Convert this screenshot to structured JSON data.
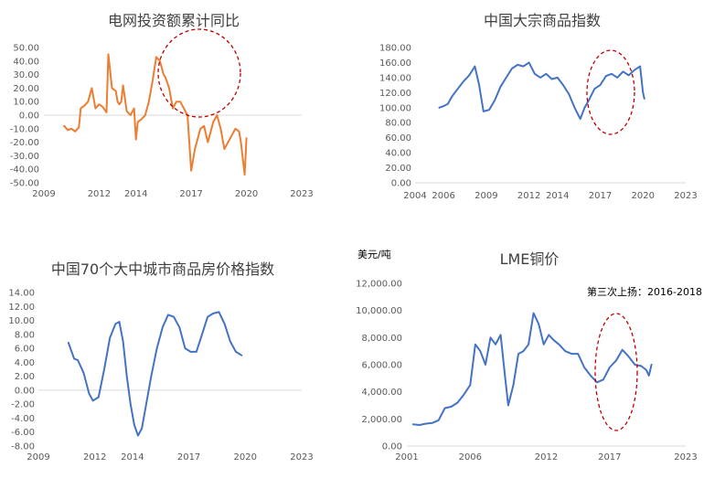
{
  "chart_data": [
    {
      "type": "line",
      "title": "电网投资额累计同比",
      "color": "#ED7D31",
      "xlim": [
        2009,
        2023
      ],
      "ylim": [
        -50,
        50
      ],
      "x_ticks": [
        "2009",
        "2012",
        "2014",
        "2017",
        "2020",
        "2023"
      ],
      "y_ticks": [
        "50.00",
        "40.00",
        "30.00",
        "20.00",
        "10.00",
        "0.00",
        "-10.00",
        "-20.00",
        "-30.00",
        "-40.00",
        "-50.00"
      ],
      "series": [
        {
          "x": [
            2010.1,
            2010.3,
            2010.5,
            2010.7,
            2010.9,
            2011.0,
            2011.2,
            2011.4,
            2011.6,
            2011.8,
            2012.0,
            2012.2,
            2012.4,
            2012.5,
            2012.7,
            2012.9,
            2013.0,
            2013.1,
            2013.2,
            2013.3,
            2013.5,
            2013.7,
            2013.9,
            2014.0,
            2014.1,
            2014.3,
            2014.5,
            2014.7,
            2014.9,
            2015.1,
            2015.3,
            2015.5,
            2015.6,
            2015.8,
            2016.0,
            2016.2,
            2016.4,
            2016.6,
            2016.8,
            2017.0,
            2017.2,
            2017.3,
            2017.5,
            2017.7,
            2017.9,
            2018.0,
            2018.2,
            2018.4,
            2018.6,
            2018.8,
            2019.0,
            2019.2,
            2019.4,
            2019.6,
            2019.7,
            2019.9,
            2020.0
          ],
          "y": [
            -8,
            -11,
            -10,
            -12,
            -9,
            5,
            7,
            10,
            20,
            5,
            8,
            6,
            2,
            45,
            20,
            18,
            10,
            8,
            10,
            22,
            3,
            0,
            5,
            -18,
            -5,
            -3,
            0,
            10,
            25,
            43,
            40,
            30,
            28,
            20,
            5,
            10,
            10,
            5,
            0,
            -41,
            -25,
            -20,
            -10,
            -8,
            -20,
            -15,
            -5,
            0,
            -10,
            -25,
            -20,
            -15,
            -10,
            -12,
            -20,
            -44,
            -17
          ]
        }
      ],
      "annotation_circle": true
    },
    {
      "type": "line",
      "title": "中国大宗商品指数",
      "color": "#4472C4",
      "xlim": [
        2004,
        2023
      ],
      "ylim": [
        0,
        180
      ],
      "x_ticks": [
        "2004",
        "2006",
        "2009",
        "2012",
        "2014",
        "2017",
        "2020",
        "2023"
      ],
      "y_ticks": [
        "180.00",
        "160.00",
        "140.00",
        "120.00",
        "100.00",
        "80.00",
        "60.00",
        "40.00",
        "20.00",
        "0.00"
      ],
      "series": [
        {
          "x": [
            2005.7,
            2006.0,
            2006.3,
            2006.6,
            2007.0,
            2007.4,
            2007.8,
            2008.2,
            2008.5,
            2008.8,
            2009.2,
            2009.6,
            2010.0,
            2010.4,
            2010.8,
            2011.2,
            2011.6,
            2012.0,
            2012.4,
            2012.8,
            2013.2,
            2013.6,
            2014.0,
            2014.4,
            2014.8,
            2015.2,
            2015.6,
            2015.9,
            2016.2,
            2016.6,
            2017.0,
            2017.4,
            2017.8,
            2018.2,
            2018.6,
            2019.0,
            2019.4,
            2019.8,
            2020.0,
            2020.1
          ],
          "y": [
            100,
            102,
            105,
            115,
            125,
            135,
            143,
            155,
            130,
            95,
            97,
            110,
            128,
            140,
            152,
            157,
            155,
            160,
            145,
            140,
            145,
            138,
            140,
            130,
            118,
            100,
            85,
            100,
            110,
            125,
            130,
            142,
            145,
            140,
            148,
            143,
            150,
            155,
            120,
            112
          ]
        }
      ],
      "annotation_circle": true
    },
    {
      "type": "line",
      "title": "中国70个大中城市商品房价格指数",
      "color": "#4472C4",
      "xlim": [
        2009,
        2023
      ],
      "ylim": [
        -8,
        14
      ],
      "x_ticks": [
        "2009",
        "2012",
        "2014",
        "2017",
        "2020",
        "2023"
      ],
      "y_ticks": [
        "14.00",
        "12.00",
        "10.00",
        "8.00",
        "6.00",
        "4.00",
        "2.00",
        "0.00",
        "-2.00",
        "-4.00",
        "-6.00",
        "-8.00"
      ],
      "series": [
        {
          "x": [
            2010.6,
            2010.9,
            2011.1,
            2011.4,
            2011.7,
            2011.9,
            2012.2,
            2012.5,
            2012.8,
            2013.1,
            2013.3,
            2013.5,
            2013.7,
            2013.9,
            2014.1,
            2014.3,
            2014.5,
            2014.8,
            2015.0,
            2015.3,
            2015.6,
            2015.9,
            2016.2,
            2016.5,
            2016.8,
            2017.1,
            2017.4,
            2017.7,
            2018.0,
            2018.3,
            2018.6,
            2018.9,
            2019.2,
            2019.5,
            2019.8
          ],
          "y": [
            6.8,
            4.5,
            4.3,
            2.5,
            -0.5,
            -1.5,
            -1.0,
            3.0,
            7.5,
            9.5,
            9.8,
            7.0,
            2.0,
            -2.0,
            -5.0,
            -6.5,
            -5.5,
            -1.0,
            2.0,
            6.0,
            9.0,
            10.8,
            10.5,
            9.0,
            6.0,
            5.5,
            5.5,
            8.0,
            10.5,
            11.0,
            11.2,
            9.5,
            7.0,
            5.5,
            5.0
          ]
        }
      ]
    },
    {
      "type": "line",
      "title": "LME铜价",
      "unit": "美元/吨",
      "annotation": "第三次上扬：2016-2018",
      "color": "#4472C4",
      "xlim": [
        2001,
        2023
      ],
      "ylim": [
        0,
        12000
      ],
      "x_ticks": [
        "2001",
        "2006",
        "2012",
        "2017",
        "2023"
      ],
      "y_ticks": [
        "12,000.00",
        "10,000.00",
        "8,000.00",
        "6,000.00",
        "4,000.00",
        "2,000.00",
        "0.00"
      ],
      "series": [
        {
          "x": [
            2001.5,
            2002.0,
            2002.5,
            2003.0,
            2003.5,
            2004.0,
            2004.5,
            2005.0,
            2005.5,
            2006.0,
            2006.4,
            2006.8,
            2007.2,
            2007.6,
            2008.0,
            2008.4,
            2008.7,
            2009.0,
            2009.4,
            2009.8,
            2010.2,
            2010.6,
            2011.0,
            2011.4,
            2011.8,
            2012.2,
            2012.6,
            2013.0,
            2013.5,
            2014.0,
            2014.5,
            2015.0,
            2015.5,
            2016.0,
            2016.5,
            2017.0,
            2017.5,
            2018.0,
            2018.5,
            2019.0,
            2019.5,
            2019.9,
            2020.1,
            2020.3
          ],
          "y": [
            1600,
            1550,
            1650,
            1700,
            1900,
            2800,
            2900,
            3200,
            3800,
            4500,
            7500,
            7000,
            6000,
            8000,
            7500,
            8200,
            5500,
            3000,
            4500,
            6800,
            7000,
            7500,
            9800,
            9000,
            7500,
            8200,
            7800,
            7500,
            7000,
            6800,
            6800,
            5800,
            5200,
            4700,
            4900,
            5800,
            6300,
            7100,
            6600,
            6000,
            5900,
            5600,
            5200,
            6000
          ]
        }
      ],
      "annotation_circle": true
    }
  ]
}
